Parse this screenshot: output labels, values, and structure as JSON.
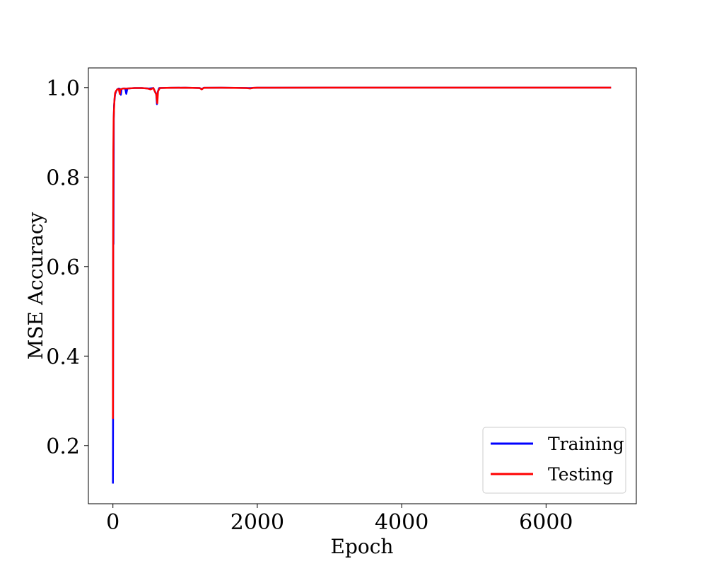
{
  "chart_data": {
    "type": "line",
    "xlabel": "Epoch",
    "ylabel": "MSE Accuracy",
    "xlim": [
      -340,
      7250
    ],
    "ylim": [
      0.07,
      1.044
    ],
    "xticks": [
      0,
      2000,
      4000,
      6000
    ],
    "xtick_labels": [
      "0",
      "2000",
      "4000",
      "6000"
    ],
    "yticks": [
      0.2,
      0.4,
      0.6,
      0.8,
      1.0
    ],
    "ytick_labels": [
      "0.2",
      "0.4",
      "0.6",
      "0.8",
      "1.0"
    ],
    "grid": false,
    "legend_position": "lower-right",
    "series": [
      {
        "name": "Training",
        "color": "#0000ff",
        "points": [
          [
            0,
            0.115
          ],
          [
            2,
            0.26
          ],
          [
            5,
            0.8
          ],
          [
            8,
            0.65
          ],
          [
            12,
            0.93
          ],
          [
            16,
            0.96
          ],
          [
            22,
            0.972
          ],
          [
            30,
            0.985
          ],
          [
            45,
            0.992
          ],
          [
            60,
            0.996
          ],
          [
            80,
            0.998
          ],
          [
            100,
            0.997
          ],
          [
            110,
            0.984
          ],
          [
            120,
            0.997
          ],
          [
            140,
            0.998
          ],
          [
            170,
            0.998
          ],
          [
            185,
            0.986
          ],
          [
            200,
            0.998
          ],
          [
            300,
            0.999
          ],
          [
            400,
            0.999
          ],
          [
            500,
            0.998
          ],
          [
            560,
            0.999
          ],
          [
            600,
            0.985
          ],
          [
            610,
            0.963
          ],
          [
            620,
            0.99
          ],
          [
            640,
            0.999
          ],
          [
            800,
            0.9995
          ],
          [
            1000,
            0.9997
          ],
          [
            1200,
            0.999
          ],
          [
            1230,
            0.997
          ],
          [
            1260,
            0.9995
          ],
          [
            1500,
            0.9997
          ],
          [
            1900,
            0.999
          ],
          [
            2000,
            0.9998
          ],
          [
            3000,
            0.9999
          ],
          [
            4000,
            0.9999
          ],
          [
            5000,
            1.0
          ],
          [
            6000,
            1.0
          ],
          [
            6900,
            1.0
          ]
        ]
      },
      {
        "name": "Testing",
        "color": "#ff0000",
        "points": [
          [
            0,
            0.26
          ],
          [
            3,
            0.6
          ],
          [
            6,
            0.86
          ],
          [
            10,
            0.93
          ],
          [
            15,
            0.95
          ],
          [
            22,
            0.975
          ],
          [
            30,
            0.988
          ],
          [
            45,
            0.993
          ],
          [
            60,
            0.996
          ],
          [
            80,
            0.997
          ],
          [
            95,
            0.986
          ],
          [
            105,
            0.996
          ],
          [
            140,
            0.998
          ],
          [
            200,
            0.998
          ],
          [
            300,
            0.999
          ],
          [
            400,
            0.999
          ],
          [
            480,
            0.998
          ],
          [
            520,
            0.996
          ],
          [
            560,
            0.999
          ],
          [
            600,
            0.985
          ],
          [
            615,
            0.965
          ],
          [
            625,
            0.992
          ],
          [
            650,
            0.999
          ],
          [
            800,
            0.9995
          ],
          [
            1000,
            0.9997
          ],
          [
            1200,
            0.999
          ],
          [
            1230,
            0.996
          ],
          [
            1260,
            0.9995
          ],
          [
            1500,
            0.9997
          ],
          [
            1850,
            0.999
          ],
          [
            1900,
            0.998
          ],
          [
            1950,
            0.9995
          ],
          [
            2000,
            0.9998
          ],
          [
            3000,
            0.9999
          ],
          [
            4000,
            0.9999
          ],
          [
            5000,
            1.0
          ],
          [
            6000,
            1.0
          ],
          [
            6900,
            1.0
          ]
        ]
      }
    ]
  }
}
